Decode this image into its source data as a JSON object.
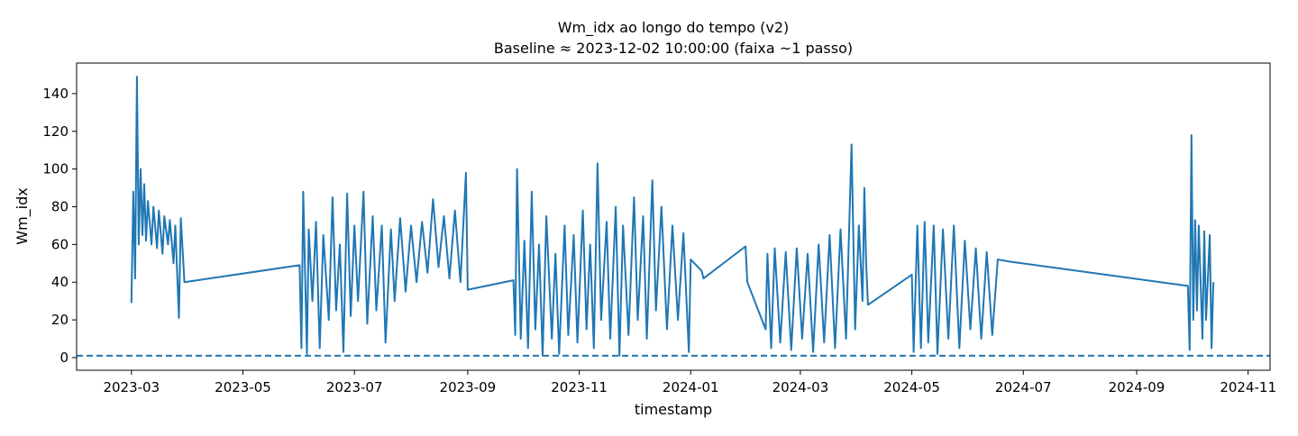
{
  "chart_data": {
    "type": "line",
    "title": "Wm_idx ao longo do tempo (v2)",
    "subtitle": "Baseline ≈ 2023-12-02 10:00:00 (faixa ~1 passo)",
    "x_label": "timestamp",
    "y_label": "Wm_idx",
    "xlim": [
      "2023-01-30",
      "2024-11-13"
    ],
    "xticks": [
      {
        "value": "2023-03-01",
        "label": "2023-03"
      },
      {
        "value": "2023-05-01",
        "label": "2023-05"
      },
      {
        "value": "2023-07-01",
        "label": "2023-07"
      },
      {
        "value": "2023-09-01",
        "label": "2023-09"
      },
      {
        "value": "2023-11-01",
        "label": "2023-11"
      },
      {
        "value": "2024-01-01",
        "label": "2024-01"
      },
      {
        "value": "2024-03-01",
        "label": "2024-03"
      },
      {
        "value": "2024-05-01",
        "label": "2024-05"
      },
      {
        "value": "2024-07-01",
        "label": "2024-07"
      },
      {
        "value": "2024-09-01",
        "label": "2024-09"
      },
      {
        "value": "2024-11-01",
        "label": "2024-11"
      }
    ],
    "ylim": [
      -6.7,
      156.2
    ],
    "yticks": [
      0,
      20,
      40,
      60,
      80,
      100,
      120,
      140
    ],
    "baseline": 1,
    "baseline_color": "#1f77b4",
    "series": [
      {
        "color": "#1f77b4",
        "x": [
          "2023-03-01",
          "2023-03-02",
          "2023-03-03",
          "2023-03-04",
          "2023-03-05",
          "2023-03-06",
          "2023-03-07",
          "2023-03-08",
          "2023-03-09",
          "2023-03-10",
          "2023-03-12",
          "2023-03-13",
          "2023-03-15",
          "2023-03-16",
          "2023-03-18",
          "2023-03-19",
          "2023-03-21",
          "2023-03-22",
          "2023-03-24",
          "2023-03-25",
          "2023-03-27",
          "2023-03-28",
          "2023-03-30",
          "2023-06-01",
          "2023-06-02",
          "2023-06-03",
          "2023-06-05",
          "2023-06-06",
          "2023-06-08",
          "2023-06-10",
          "2023-06-12",
          "2023-06-14",
          "2023-06-17",
          "2023-06-19",
          "2023-06-21",
          "2023-06-23",
          "2023-06-25",
          "2023-06-27",
          "2023-06-29",
          "2023-07-01",
          "2023-07-03",
          "2023-07-06",
          "2023-07-08",
          "2023-07-11",
          "2023-07-13",
          "2023-07-16",
          "2023-07-18",
          "2023-07-21",
          "2023-07-23",
          "2023-07-26",
          "2023-07-29",
          "2023-08-01",
          "2023-08-04",
          "2023-08-07",
          "2023-08-10",
          "2023-08-13",
          "2023-08-16",
          "2023-08-19",
          "2023-08-22",
          "2023-08-25",
          "2023-08-28",
          "2023-08-31",
          "2023-09-01",
          "2023-09-26",
          "2023-09-27",
          "2023-09-28",
          "2023-09-30",
          "2023-10-02",
          "2023-10-04",
          "2023-10-06",
          "2023-10-08",
          "2023-10-10",
          "2023-10-12",
          "2023-10-14",
          "2023-10-17",
          "2023-10-19",
          "2023-10-21",
          "2023-10-24",
          "2023-10-26",
          "2023-10-29",
          "2023-10-31",
          "2023-11-03",
          "2023-11-05",
          "2023-11-07",
          "2023-11-09",
          "2023-11-11",
          "2023-11-13",
          "2023-11-16",
          "2023-11-18",
          "2023-11-21",
          "2023-11-23",
          "2023-11-25",
          "2023-11-28",
          "2023-12-01",
          "2023-12-03",
          "2023-12-06",
          "2023-12-08",
          "2023-12-11",
          "2023-12-13",
          "2023-12-16",
          "2023-12-19",
          "2023-12-22",
          "2023-12-25",
          "2023-12-28",
          "2023-12-31",
          "2024-01-01",
          "2024-01-07",
          "2024-01-08",
          "2024-01-31",
          "2024-02-01",
          "2024-02-11",
          "2024-02-12",
          "2024-02-14",
          "2024-02-16",
          "2024-02-19",
          "2024-02-22",
          "2024-02-25",
          "2024-02-28",
          "2024-03-02",
          "2024-03-05",
          "2024-03-08",
          "2024-03-11",
          "2024-03-14",
          "2024-03-17",
          "2024-03-20",
          "2024-03-23",
          "2024-03-26",
          "2024-03-29",
          "2024-03-31",
          "2024-04-02",
          "2024-04-04",
          "2024-04-05",
          "2024-04-06",
          "2024-04-07",
          "2024-05-01",
          "2024-05-02",
          "2024-05-04",
          "2024-05-06",
          "2024-05-08",
          "2024-05-10",
          "2024-05-13",
          "2024-05-15",
          "2024-05-18",
          "2024-05-21",
          "2024-05-24",
          "2024-05-27",
          "2024-05-30",
          "2024-06-02",
          "2024-06-05",
          "2024-06-08",
          "2024-06-11",
          "2024-06-14",
          "2024-06-17",
          "2024-06-23",
          "2024-09-29",
          "2024-09-30",
          "2024-10-01",
          "2024-10-02",
          "2024-10-03",
          "2024-10-04",
          "2024-10-05",
          "2024-10-07",
          "2024-10-08",
          "2024-10-09",
          "2024-10-11",
          "2024-10-12",
          "2024-10-13"
        ],
        "values": [
          29,
          88,
          42,
          149,
          60,
          100,
          65,
          92,
          62,
          83,
          60,
          80,
          58,
          78,
          55,
          75,
          60,
          73,
          50,
          70,
          21,
          74,
          40,
          49,
          5,
          88,
          2,
          68,
          30,
          72,
          5,
          65,
          20,
          85,
          25,
          60,
          3,
          87,
          22,
          70,
          30,
          88,
          18,
          75,
          25,
          70,
          8,
          68,
          30,
          74,
          35,
          70,
          40,
          72,
          45,
          84,
          48,
          75,
          42,
          78,
          40,
          98,
          36,
          41,
          12,
          100,
          10,
          62,
          5,
          88,
          15,
          60,
          1,
          75,
          10,
          55,
          2,
          70,
          12,
          65,
          8,
          78,
          15,
          60,
          5,
          103,
          20,
          72,
          10,
          80,
          1,
          70,
          12,
          85,
          20,
          75,
          10,
          94,
          25,
          80,
          15,
          70,
          20,
          66,
          3,
          52,
          46,
          42,
          59,
          40,
          15,
          55,
          5,
          58,
          8,
          56,
          4,
          58,
          10,
          55,
          3,
          60,
          8,
          65,
          5,
          68,
          10,
          113,
          15,
          70,
          30,
          90,
          50,
          28,
          44,
          3,
          70,
          5,
          72,
          8,
          70,
          2,
          68,
          10,
          70,
          5,
          62,
          15,
          58,
          10,
          56,
          12,
          52,
          51,
          38,
          4,
          118,
          20,
          73,
          25,
          70,
          10,
          67,
          20,
          65,
          5,
          40
        ]
      }
    ]
  }
}
